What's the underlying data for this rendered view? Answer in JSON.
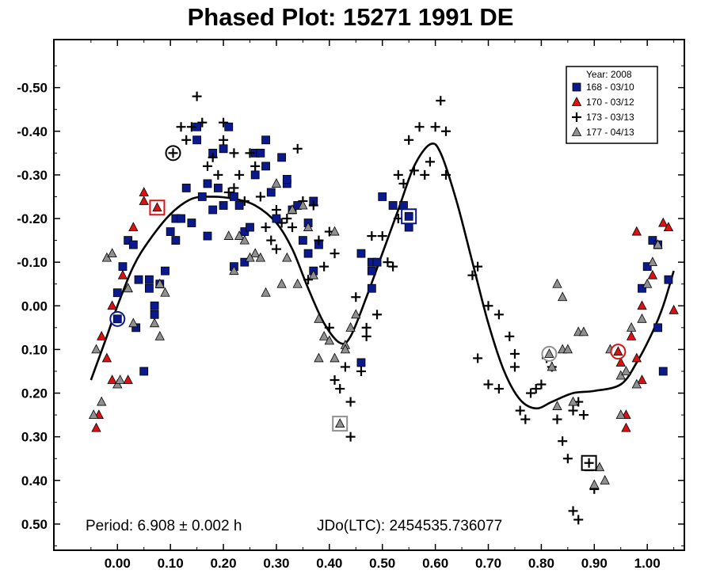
{
  "chart_data": {
    "type": "scatter",
    "title": "Phased Plot: 15271 1991 DE",
    "xlabel": "",
    "ylabel": "",
    "xlim": [
      -0.12,
      1.07
    ],
    "ylim": [
      -0.61,
      0.56
    ],
    "y_inverted": true,
    "x_ticks": [
      "0.00",
      "0.10",
      "0.20",
      "0.30",
      "0.40",
      "0.50",
      "0.60",
      "0.70",
      "0.80",
      "0.90",
      "1.00"
    ],
    "x_tick_values": [
      0,
      0.1,
      0.2,
      0.3,
      0.4,
      0.5,
      0.6,
      0.7,
      0.8,
      0.9,
      1.0
    ],
    "y_ticks": [
      "-0.50",
      "-0.40",
      "-0.30",
      "-0.20",
      "-0.10",
      "0.00",
      "0.10",
      "0.20",
      "0.30",
      "0.40",
      "0.50"
    ],
    "y_tick_values": [
      -0.5,
      -0.4,
      -0.3,
      -0.2,
      -0.1,
      0,
      0.1,
      0.2,
      0.3,
      0.4,
      0.5
    ],
    "legend": {
      "title": "Year: 2008",
      "placement": "top-right",
      "entries": [
        "168 - 03/10",
        "170 - 03/12",
        "173 - 03/13",
        "177 - 04/13"
      ]
    },
    "annotations": {
      "period": "Period: 6.908 ± 0.002 h",
      "jdo": "JDo(LTC): 2454535.736077"
    },
    "series": [
      {
        "name": "168 - 03/10",
        "marker": "square",
        "color": "#0a1a8c",
        "points": [
          [
            0.0,
            -0.03
          ],
          [
            0.01,
            -0.09
          ],
          [
            0.02,
            -0.15
          ],
          [
            0.03,
            -0.14
          ],
          [
            0.04,
            -0.06
          ],
          [
            0.035,
            0.05
          ],
          [
            0.05,
            0.15
          ],
          [
            0.06,
            -0.06
          ],
          [
            0.06,
            -0.04
          ],
          [
            0.07,
            0.0
          ],
          [
            0.07,
            0.02
          ],
          [
            0.08,
            -0.05
          ],
          [
            0.09,
            -0.08
          ],
          [
            0.1,
            -0.17
          ],
          [
            0.11,
            -0.15
          ],
          [
            0.11,
            -0.2
          ],
          [
            0.12,
            -0.2
          ],
          [
            0.13,
            -0.27
          ],
          [
            0.14,
            -0.19
          ],
          [
            0.15,
            -0.38
          ],
          [
            0.15,
            -0.41
          ],
          [
            0.16,
            -0.25
          ],
          [
            0.17,
            -0.28
          ],
          [
            0.17,
            -0.16
          ],
          [
            0.18,
            -0.35
          ],
          [
            0.18,
            -0.22
          ],
          [
            0.19,
            -0.27
          ],
          [
            0.2,
            -0.36
          ],
          [
            0.2,
            -0.23
          ],
          [
            0.21,
            -0.41
          ],
          [
            0.22,
            -0.25
          ],
          [
            0.23,
            -0.23
          ],
          [
            0.22,
            -0.09
          ],
          [
            0.24,
            -0.17
          ],
          [
            0.24,
            -0.1
          ],
          [
            0.25,
            -0.18
          ],
          [
            0.26,
            -0.3
          ],
          [
            0.26,
            -0.35
          ],
          [
            0.27,
            -0.35
          ],
          [
            0.28,
            -0.38
          ],
          [
            0.28,
            -0.32
          ],
          [
            0.29,
            -0.26
          ],
          [
            0.3,
            -0.2
          ],
          [
            0.31,
            -0.34
          ],
          [
            0.32,
            -0.28
          ],
          [
            0.32,
            -0.29
          ],
          [
            0.33,
            -0.22
          ],
          [
            0.34,
            -0.23
          ],
          [
            0.35,
            -0.15
          ],
          [
            0.36,
            -0.12
          ],
          [
            0.36,
            -0.19
          ],
          [
            0.37,
            -0.08
          ],
          [
            0.38,
            -0.14
          ],
          [
            0.37,
            -0.24
          ],
          [
            0.46,
            -0.12
          ],
          [
            0.48,
            -0.1
          ],
          [
            0.48,
            -0.08
          ],
          [
            0.48,
            -0.04
          ],
          [
            0.49,
            -0.1
          ],
          [
            0.5,
            -0.25
          ],
          [
            0.52,
            -0.23
          ],
          [
            0.54,
            -0.23
          ],
          [
            0.55,
            -0.18
          ],
          [
            0.55,
            -0.21
          ],
          [
            0.46,
            0.13
          ],
          [
            0.99,
            -0.04
          ],
          [
            1.0,
            -0.09
          ],
          [
            1.01,
            -0.15
          ],
          [
            1.02,
            -0.14
          ],
          [
            1.02,
            0.05
          ],
          [
            1.03,
            0.15
          ],
          [
            1.04,
            -0.06
          ]
        ]
      },
      {
        "name": "170 - 03/12",
        "marker": "triangle",
        "color": "#dd1111",
        "points": [
          [
            -0.04,
            0.28
          ],
          [
            -0.035,
            0.25
          ],
          [
            -0.03,
            0.07
          ],
          [
            -0.02,
            0.12
          ],
          [
            -0.01,
            0.0
          ],
          [
            -0.01,
            0.17
          ],
          [
            0.01,
            -0.07
          ],
          [
            0.02,
            -0.04
          ],
          [
            0.02,
            0.17
          ],
          [
            0.03,
            -0.18
          ],
          [
            0.05,
            -0.26
          ],
          [
            0.05,
            -0.24
          ],
          [
            0.07,
            -0.22
          ],
          [
            0.94,
            0.1
          ],
          [
            0.95,
            0.13
          ],
          [
            0.96,
            0.28
          ],
          [
            0.96,
            0.25
          ],
          [
            0.97,
            0.07
          ],
          [
            0.98,
            0.12
          ],
          [
            0.98,
            -0.17
          ],
          [
            0.99,
            0.0
          ],
          [
            0.99,
            0.17
          ],
          [
            1.01,
            -0.07
          ],
          [
            1.03,
            -0.19
          ],
          [
            1.04,
            -0.18
          ],
          [
            1.05,
            0.01
          ]
        ]
      },
      {
        "name": "173 - 03/13",
        "marker": "plus",
        "color": "#000000",
        "points": [
          [
            0.1,
            -0.35
          ],
          [
            0.12,
            -0.41
          ],
          [
            0.13,
            -0.38
          ],
          [
            0.14,
            -0.41
          ],
          [
            0.15,
            -0.48
          ],
          [
            0.16,
            -0.42
          ],
          [
            0.17,
            -0.32
          ],
          [
            0.18,
            -0.34
          ],
          [
            0.19,
            -0.3
          ],
          [
            0.2,
            -0.42
          ],
          [
            0.2,
            -0.38
          ],
          [
            0.21,
            -0.26
          ],
          [
            0.22,
            -0.35
          ],
          [
            0.22,
            -0.27
          ],
          [
            0.23,
            -0.3
          ],
          [
            0.24,
            -0.24
          ],
          [
            0.25,
            -0.35
          ],
          [
            0.26,
            -0.32
          ],
          [
            0.27,
            -0.25
          ],
          [
            0.28,
            -0.18
          ],
          [
            0.29,
            -0.15
          ],
          [
            0.3,
            -0.13
          ],
          [
            0.3,
            -0.22
          ],
          [
            0.31,
            -0.19
          ],
          [
            0.32,
            -0.2
          ],
          [
            0.33,
            -0.18
          ],
          [
            0.34,
            -0.36
          ],
          [
            0.35,
            -0.24
          ],
          [
            0.36,
            -0.06
          ],
          [
            0.37,
            -0.23
          ],
          [
            0.38,
            -0.15
          ],
          [
            0.39,
            -0.09
          ],
          [
            0.4,
            -0.17
          ],
          [
            0.41,
            -0.12
          ],
          [
            0.4,
            0.05
          ],
          [
            0.41,
            0.17
          ],
          [
            0.42,
            0.19
          ],
          [
            0.43,
            0.14
          ],
          [
            0.44,
            0.3
          ],
          [
            0.44,
            0.22
          ],
          [
            0.45,
            -0.02
          ],
          [
            0.46,
            0.15
          ],
          [
            0.47,
            0.05
          ],
          [
            0.47,
            0.07
          ],
          [
            0.48,
            -0.16
          ],
          [
            0.49,
            0.02
          ],
          [
            0.5,
            -0.16
          ],
          [
            0.51,
            -0.1
          ],
          [
            0.52,
            -0.09
          ],
          [
            0.53,
            -0.3
          ],
          [
            0.53,
            -0.2
          ],
          [
            0.54,
            -0.28
          ],
          [
            0.55,
            -0.38
          ],
          [
            0.56,
            -0.31
          ],
          [
            0.57,
            -0.41
          ],
          [
            0.58,
            -0.3
          ],
          [
            0.59,
            -0.33
          ],
          [
            0.6,
            -0.41
          ],
          [
            0.61,
            -0.47
          ],
          [
            0.62,
            -0.4
          ],
          [
            0.62,
            -0.3
          ],
          [
            0.67,
            -0.07
          ],
          [
            0.68,
            -0.09
          ],
          [
            0.68,
            0.12
          ],
          [
            0.7,
            0.0
          ],
          [
            0.7,
            0.18
          ],
          [
            0.72,
            0.19
          ],
          [
            0.72,
            0.02
          ],
          [
            0.74,
            0.07
          ],
          [
            0.75,
            0.11
          ],
          [
            0.75,
            0.14
          ],
          [
            0.76,
            0.24
          ],
          [
            0.77,
            0.26
          ],
          [
            0.78,
            0.2
          ],
          [
            0.79,
            0.19
          ],
          [
            0.8,
            0.18
          ],
          [
            0.81,
            0.12
          ],
          [
            0.82,
            0.14
          ],
          [
            0.83,
            0.26
          ],
          [
            0.84,
            0.31
          ],
          [
            0.85,
            0.35
          ],
          [
            0.86,
            0.24
          ],
          [
            0.87,
            0.22
          ],
          [
            0.88,
            0.25
          ],
          [
            0.86,
            0.47
          ],
          [
            0.87,
            0.49
          ],
          [
            0.89,
            0.36
          ],
          [
            0.9,
            0.42
          ]
        ]
      },
      {
        "name": "177 - 04/13",
        "marker": "triangle",
        "color": "#909090",
        "points": [
          [
            -0.045,
            0.25
          ],
          [
            -0.03,
            0.22
          ],
          [
            -0.04,
            0.1
          ],
          [
            -0.02,
            -0.11
          ],
          [
            -0.01,
            -0.12
          ],
          [
            0.0,
            0.18
          ],
          [
            0.005,
            0.17
          ],
          [
            0.02,
            -0.04
          ],
          [
            0.03,
            0.04
          ],
          [
            0.07,
            0.04
          ],
          [
            0.08,
            -0.05
          ],
          [
            0.08,
            0.07
          ],
          [
            0.09,
            -0.03
          ],
          [
            0.21,
            -0.16
          ],
          [
            0.23,
            -0.16
          ],
          [
            0.22,
            -0.08
          ],
          [
            0.24,
            -0.15
          ],
          [
            0.26,
            -0.12
          ],
          [
            0.25,
            -0.11
          ],
          [
            0.27,
            -0.11
          ],
          [
            0.28,
            -0.03
          ],
          [
            0.3,
            -0.28
          ],
          [
            0.31,
            -0.05
          ],
          [
            0.32,
            -0.11
          ],
          [
            0.33,
            -0.22
          ],
          [
            0.34,
            -0.05
          ],
          [
            0.35,
            -0.23
          ],
          [
            0.36,
            -0.18
          ],
          [
            0.37,
            -0.07
          ],
          [
            0.38,
            0.03
          ],
          [
            0.38,
            0.12
          ],
          [
            0.39,
            0.07
          ],
          [
            0.4,
            0.08
          ],
          [
            0.41,
            0.12
          ],
          [
            0.41,
            -0.17
          ],
          [
            0.42,
            0.27
          ],
          [
            0.43,
            0.09
          ],
          [
            0.43,
            0.1
          ],
          [
            0.44,
            0.05
          ],
          [
            0.45,
            0.02
          ],
          [
            0.81,
            0.11
          ],
          [
            0.82,
            0.14
          ],
          [
            0.83,
            0.23
          ],
          [
            0.83,
            -0.05
          ],
          [
            0.84,
            0.1
          ],
          [
            0.84,
            -0.02
          ],
          [
            0.85,
            0.1
          ],
          [
            0.86,
            0.22
          ],
          [
            0.87,
            0.06
          ],
          [
            0.88,
            0.06
          ],
          [
            0.89,
            0.37
          ],
          [
            0.9,
            0.41
          ],
          [
            0.91,
            0.37
          ],
          [
            0.92,
            0.4
          ],
          [
            0.93,
            0.1
          ],
          [
            0.95,
            0.16
          ],
          [
            0.95,
            0.25
          ],
          [
            0.96,
            0.15
          ],
          [
            0.97,
            0.05
          ],
          [
            0.98,
            0.18
          ],
          [
            0.99,
            0.03
          ],
          [
            1.0,
            -0.05
          ],
          [
            1.01,
            -0.1
          ],
          [
            1.02,
            -0.14
          ]
        ]
      }
    ],
    "circled_markers": [
      {
        "series": 0,
        "x": 0.0,
        "y": 0.03,
        "shape": "circle",
        "color": "#0a1a8c"
      },
      {
        "series": 2,
        "x": 0.105,
        "y": -0.35,
        "shape": "circle",
        "color": "#000000"
      },
      {
        "series": 3,
        "x": 0.815,
        "y": 0.11,
        "shape": "circle",
        "color": "#909090"
      },
      {
        "series": 1,
        "x": 0.945,
        "y": 0.105,
        "shape": "circle",
        "color": "#dd1111"
      },
      {
        "series": 1,
        "x": 0.075,
        "y": -0.225,
        "shape": "square",
        "color": "#dd1111"
      },
      {
        "series": 0,
        "x": 0.55,
        "y": -0.205,
        "shape": "square",
        "color": "#0a1a8c"
      },
      {
        "series": 3,
        "x": 0.42,
        "y": 0.27,
        "shape": "square",
        "color": "#909090"
      },
      {
        "series": 2,
        "x": 0.89,
        "y": 0.36,
        "shape": "square",
        "color": "#000000"
      }
    ],
    "fit_curve": {
      "name": "Fourier fit",
      "color": "#000000",
      "points": [
        [
          -0.05,
          0.17
        ],
        [
          -0.02,
          0.07
        ],
        [
          0.0,
          0.0
        ],
        [
          0.03,
          -0.09
        ],
        [
          0.06,
          -0.15
        ],
        [
          0.1,
          -0.21
        ],
        [
          0.14,
          -0.245
        ],
        [
          0.18,
          -0.25
        ],
        [
          0.22,
          -0.245
        ],
        [
          0.26,
          -0.23
        ],
        [
          0.3,
          -0.19
        ],
        [
          0.33,
          -0.13
        ],
        [
          0.36,
          -0.04
        ],
        [
          0.39,
          0.04
        ],
        [
          0.42,
          0.085
        ],
        [
          0.44,
          0.07
        ],
        [
          0.47,
          -0.02
        ],
        [
          0.5,
          -0.12
        ],
        [
          0.53,
          -0.22
        ],
        [
          0.56,
          -0.32
        ],
        [
          0.59,
          -0.37
        ],
        [
          0.61,
          -0.35
        ],
        [
          0.64,
          -0.24
        ],
        [
          0.67,
          -0.1
        ],
        [
          0.7,
          0.04
        ],
        [
          0.73,
          0.15
        ],
        [
          0.76,
          0.215
        ],
        [
          0.79,
          0.235
        ],
        [
          0.82,
          0.22
        ],
        [
          0.86,
          0.2
        ],
        [
          0.9,
          0.195
        ],
        [
          0.95,
          0.18
        ],
        [
          0.98,
          0.13
        ],
        [
          1.01,
          0.06
        ],
        [
          1.03,
          0.0
        ],
        [
          1.05,
          -0.08
        ]
      ]
    }
  }
}
